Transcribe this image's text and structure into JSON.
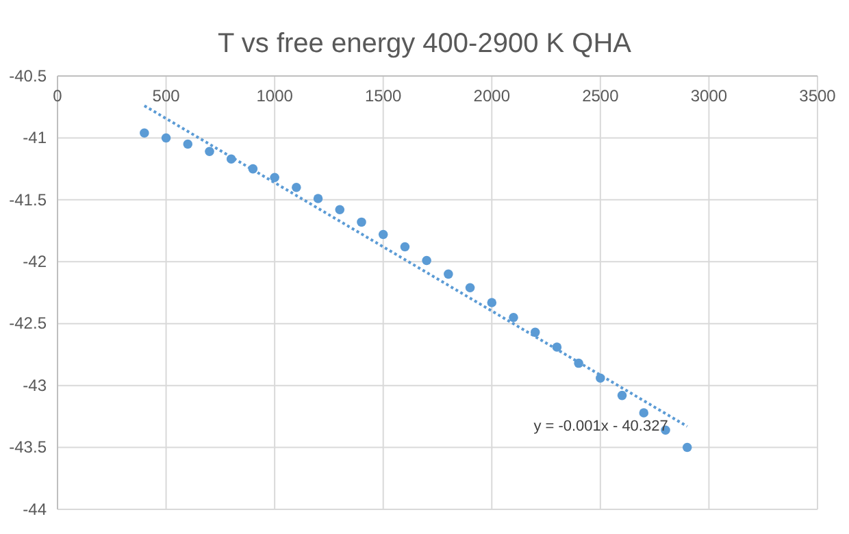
{
  "chart_data": {
    "type": "scatter",
    "title": "T vs free energy 400-2900 K QHA",
    "x": [
      400,
      500,
      600,
      700,
      800,
      900,
      1000,
      1100,
      1200,
      1300,
      1400,
      1500,
      1600,
      1700,
      1800,
      1900,
      2000,
      2100,
      2200,
      2300,
      2400,
      2500,
      2600,
      2700,
      2800,
      2900
    ],
    "series": [
      {
        "color": "#5b9bd5",
        "marker": "circle",
        "values": [
          -40.96,
          -41.0,
          -41.05,
          -41.11,
          -41.17,
          -41.25,
          -41.32,
          -41.4,
          -41.49,
          -41.58,
          -41.68,
          -41.78,
          -41.88,
          -41.99,
          -42.1,
          -42.21,
          -42.33,
          -42.45,
          -42.57,
          -42.69,
          -42.82,
          -42.94,
          -43.08,
          -43.22,
          -43.36,
          -43.5
        ]
      },
      {
        "type": "line",
        "color": "#5b9bd5",
        "line_style": "dotted",
        "x": [
          400,
          2900
        ],
        "values": [
          -40.74,
          -43.33
        ]
      }
    ],
    "annotations": [
      "y = -0.001x - 40.327"
    ],
    "xlim": [
      0,
      3500
    ],
    "xticks": [
      0,
      500,
      1000,
      1500,
      2000,
      2500,
      3000,
      3500
    ],
    "ylim": [
      -44,
      -40.5
    ],
    "yticks": [
      -40.5,
      -41,
      -41.5,
      -42,
      -42.5,
      -43,
      -43.5,
      -44
    ],
    "grid": true
  }
}
